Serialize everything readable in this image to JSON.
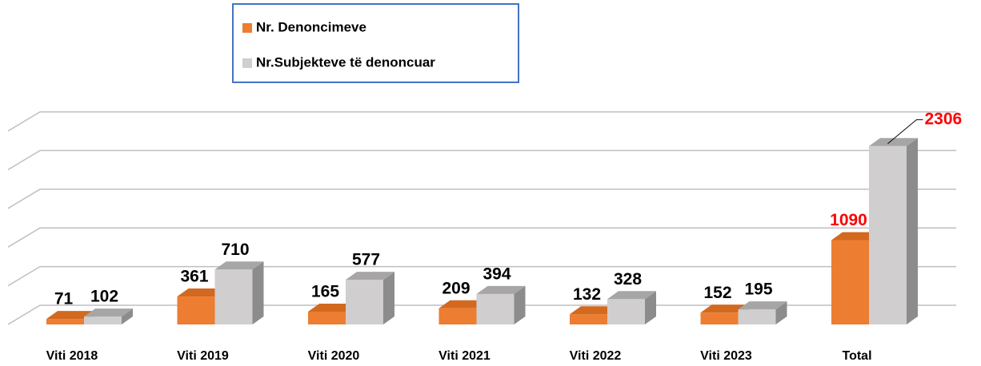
{
  "chart_data": {
    "type": "bar3d",
    "categories": [
      "Viti 2018",
      "Viti 2019",
      "Viti 2020",
      "Viti 2021",
      "Viti 2022",
      "Viti  2023",
      "Total"
    ],
    "series": [
      {
        "name": "Nr. Denoncimeve",
        "color": "#ed7d31",
        "values": [
          71,
          361,
          165,
          209,
          132,
          152,
          1090
        ]
      },
      {
        "name": "Nr.Subjekteve të denoncuar",
        "color": "#d0cece",
        "values": [
          102,
          710,
          577,
          394,
          328,
          195,
          2306
        ]
      }
    ],
    "ylim": [
      0,
      2500
    ],
    "yticks": [
      0,
      500,
      1000,
      1500,
      2000,
      2500
    ],
    "grid": true
  }
}
